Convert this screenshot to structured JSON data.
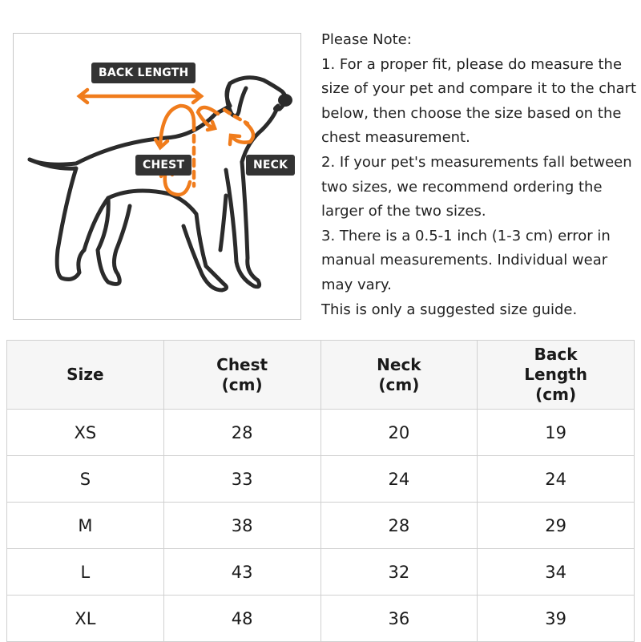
{
  "illustration": {
    "labels": {
      "back_length": "BACK LENGTH",
      "chest": "CHEST",
      "neck": "NECK"
    },
    "accent_color": "#f07c1c",
    "outline_color": "#2b2b2b"
  },
  "notes": {
    "lines": [
      "Please Note:",
      "1. For a proper fit, please do measure the",
      "size of your pet and compare it to the chart",
      "below, then choose the size based on the",
      "chest measurement.",
      "2. If your pet's measurements fall between",
      "two sizes, we recommend ordering the",
      "larger of the two sizes.",
      "3. There is a 0.5-1 inch (1-3 cm) error in",
      "manual measurements. Individual wear",
      "may vary.",
      "This is only a suggested size guide."
    ]
  },
  "table": {
    "headers": [
      [
        "Size"
      ],
      [
        "Chest",
        "(cm)"
      ],
      [
        "Neck",
        "(cm)"
      ],
      [
        "Back",
        "Length",
        "(cm)"
      ]
    ],
    "rows": [
      [
        "XS",
        "28",
        "20",
        "19"
      ],
      [
        "S",
        "33",
        "24",
        "24"
      ],
      [
        "M",
        "38",
        "28",
        "29"
      ],
      [
        "L",
        "43",
        "32",
        "34"
      ],
      [
        "XL",
        "48",
        "36",
        "39"
      ]
    ]
  }
}
